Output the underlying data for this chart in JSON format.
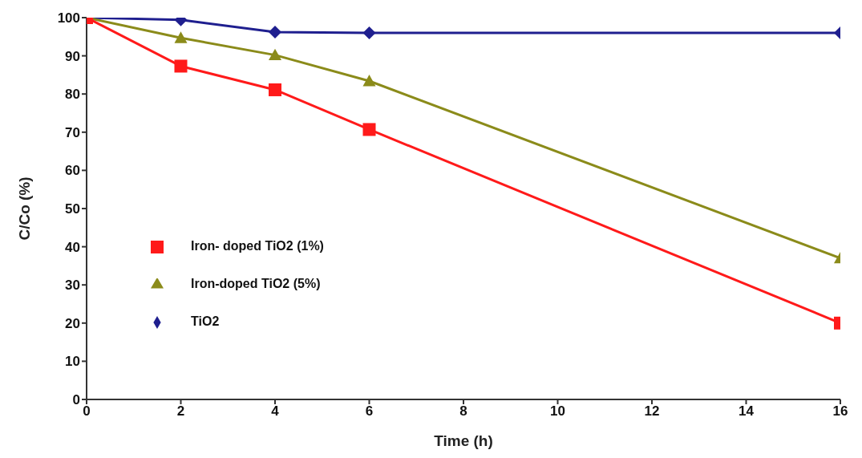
{
  "chart_data": {
    "type": "line",
    "xlabel": "Time (h)",
    "ylabel": "C/Co (%)",
    "x": [
      0,
      2,
      4,
      6,
      16
    ],
    "series": [
      {
        "name": "TiO2",
        "color": "#1f1f8f",
        "marker": "diamond",
        "values": [
          100,
          99.4,
          96.2,
          96,
          96
        ]
      },
      {
        "name": "Iron-doped TiO2 (5%)",
        "color": "#8b8b1a",
        "marker": "triangle",
        "values": [
          100,
          94.7,
          90.2,
          83.4,
          37
        ]
      },
      {
        "name": "Iron- doped TiO2 (1%)",
        "color": "#ff1a1a",
        "marker": "square",
        "values": [
          100,
          87.3,
          81.1,
          70.7,
          20
        ]
      }
    ],
    "xlim": [
      0,
      16
    ],
    "xticks": [
      0,
      2,
      4,
      6,
      8,
      10,
      12,
      14,
      16
    ],
    "ylim": [
      0,
      100
    ],
    "yticks": [
      0,
      10,
      20,
      30,
      40,
      50,
      60,
      70,
      80,
      90,
      100
    ],
    "grid": false,
    "legend": "left",
    "line_style": "solid"
  }
}
